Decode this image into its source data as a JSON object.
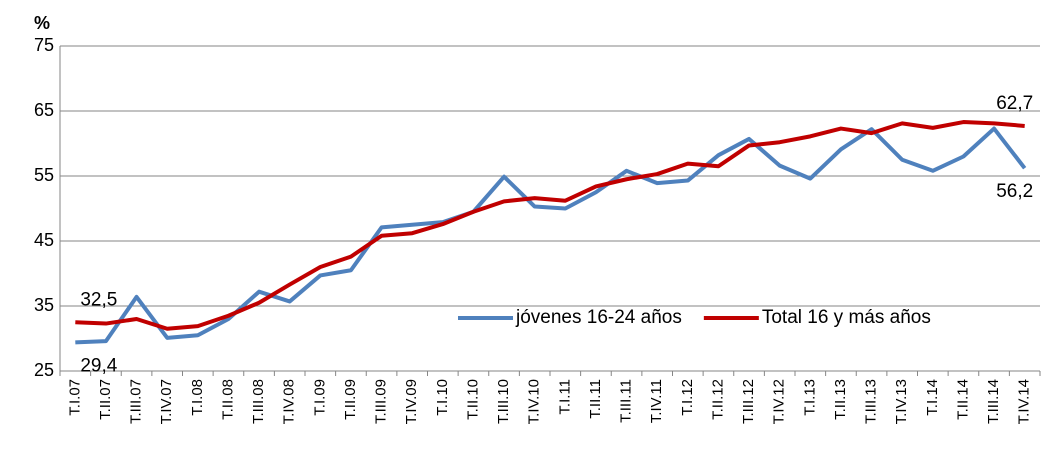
{
  "chart_data": {
    "type": "line",
    "y_label": "%",
    "categories": [
      "T.I.07",
      "T.II.07",
      "T.III.07",
      "T.IV.07",
      "T.I.08",
      "T.II.08",
      "T.III.08",
      "T.IV.08",
      "T.I.09",
      "T.II.09",
      "T.III.09",
      "T.IV.09",
      "T.I.10",
      "T.II.10",
      "T.III.10",
      "T.IV.10",
      "T.I.11",
      "T.II.11",
      "T.III.11",
      "T.IV.11",
      "T.I.12",
      "T.II.12",
      "T.III.12",
      "T.IV.12",
      "T.I.13",
      "T.II.13",
      "T.III.13",
      "T.IV.13",
      "T.I.14",
      "T.II.14",
      "T.III.14",
      "T.IV.14"
    ],
    "series": [
      {
        "name": "jóvenes 16-24 años",
        "color": "#4f81bd",
        "values": [
          29.4,
          29.6,
          36.4,
          30.1,
          30.5,
          33.0,
          37.2,
          35.7,
          39.7,
          40.5,
          47.1,
          47.5,
          47.9,
          49.5,
          54.9,
          50.3,
          50.0,
          52.5,
          55.8,
          53.9,
          54.3,
          58.2,
          60.7,
          56.6,
          54.6,
          59.1,
          62.2,
          57.5,
          55.8,
          58.0,
          62.3,
          56.2
        ],
        "value_labels": [
          "29,4",
          null,
          null,
          null,
          null,
          null,
          null,
          null,
          null,
          null,
          null,
          null,
          null,
          null,
          null,
          null,
          null,
          null,
          null,
          null,
          null,
          null,
          null,
          null,
          null,
          null,
          null,
          null,
          null,
          null,
          null,
          "56,2"
        ]
      },
      {
        "name": "Total 16 y más años",
        "color": "#c00000",
        "values": [
          32.5,
          32.3,
          33.0,
          31.5,
          31.9,
          33.5,
          35.5,
          38.3,
          41.0,
          42.6,
          45.8,
          46.2,
          47.6,
          49.5,
          51.1,
          51.6,
          51.2,
          53.4,
          54.5,
          55.3,
          56.9,
          56.5,
          59.7,
          60.2,
          61.1,
          62.3,
          61.6,
          63.1,
          62.4,
          63.3,
          63.1,
          62.7
        ],
        "value_labels": [
          "32,5",
          null,
          null,
          null,
          null,
          null,
          null,
          null,
          null,
          null,
          null,
          null,
          null,
          null,
          null,
          null,
          null,
          null,
          null,
          null,
          null,
          null,
          null,
          null,
          null,
          null,
          null,
          null,
          null,
          null,
          null,
          "62,7"
        ]
      }
    ],
    "ylim": [
      25,
      75
    ],
    "yticks": [
      25,
      35,
      45,
      55,
      65,
      75
    ],
    "grid": true,
    "legend": "lower right"
  }
}
